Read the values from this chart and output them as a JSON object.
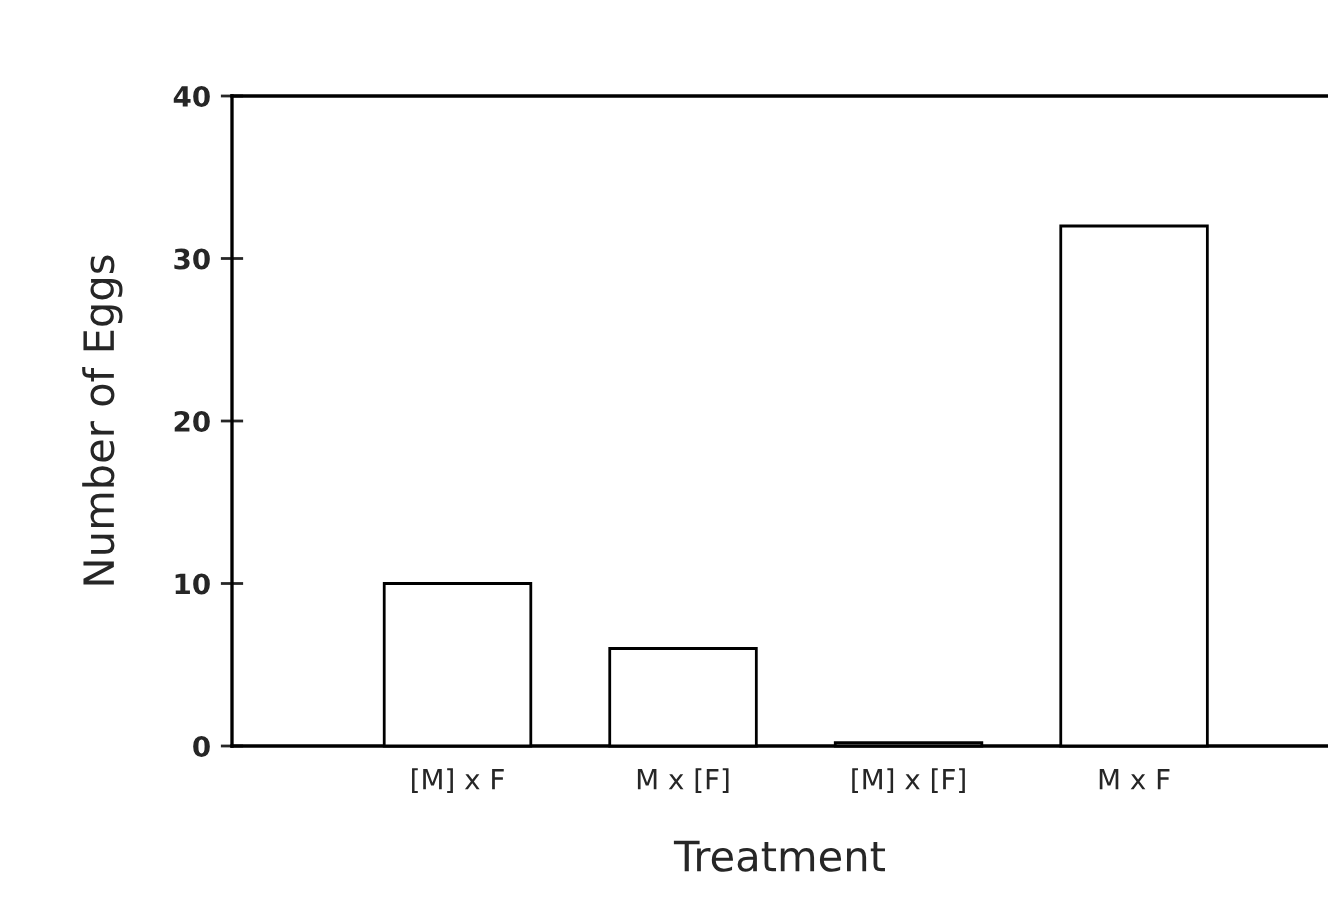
{
  "chart_data": {
    "type": "bar",
    "xlabel": "Treatment",
    "ylabel": "Number of Eggs",
    "categories": [
      "[M] x F",
      "M x [F]",
      "[M] x [F]",
      "M x F"
    ],
    "values": [
      10,
      6,
      0.2,
      32
    ],
    "color": "#ffffff",
    "ylim": [
      0,
      40
    ],
    "yticks": [
      0,
      10,
      20,
      30,
      40
    ],
    "grid": false
  }
}
